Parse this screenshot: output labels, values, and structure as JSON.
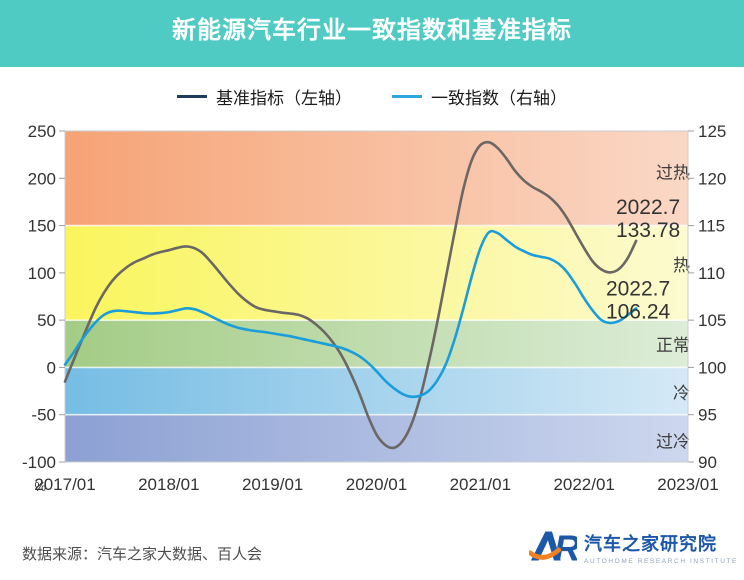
{
  "header": {
    "title": "新能源汽车行业一致指数和基准指标",
    "bar_color": "#4FCBC4",
    "title_color": "#FFFFFF"
  },
  "chart_data": {
    "type": "line",
    "title": "新能源汽车行业一致指数和基准指标",
    "x_axis": {
      "tick_labels": [
        "2017/01",
        "2018/01",
        "2019/01",
        "2020/01",
        "2021/01",
        "2022/01",
        "2023/01"
      ],
      "months_span": 72
    },
    "left_axis": {
      "unit": "%",
      "min": -100,
      "max": 250,
      "tick_labels": [
        "250",
        "200",
        "150",
        "100",
        "50",
        "0",
        "-50",
        "-100"
      ]
    },
    "right_axis": {
      "min": 90,
      "max": 125,
      "tick_labels": [
        "125",
        "120",
        "115",
        "110",
        "105",
        "100",
        "95",
        "90"
      ]
    },
    "bands": [
      {
        "key": "overheat",
        "label": "过热",
        "left_range": [
          150,
          250
        ],
        "right_range": [
          115,
          125
        ],
        "color_start": "#F6A375",
        "color_end": "#FAD8C6"
      },
      {
        "key": "hot",
        "label": "热",
        "left_range": [
          50,
          150
        ],
        "right_range": [
          105,
          115
        ],
        "color_start": "#FAF55C",
        "color_end": "#FCFAD0"
      },
      {
        "key": "normal",
        "label": "正常",
        "left_range": [
          0,
          50
        ],
        "right_range": [
          100,
          105
        ],
        "color_start": "#A3CC85",
        "color_end": "#DDEDD8"
      },
      {
        "key": "cold",
        "label": "冷",
        "left_range": [
          -50,
          0
        ],
        "right_range": [
          95,
          100
        ],
        "color_start": "#76BDE4",
        "color_end": "#D5E9F6"
      },
      {
        "key": "overcold",
        "label": "过冷",
        "left_range": [
          -100,
          -50
        ],
        "right_range": [
          90,
          95
        ],
        "color_start": "#8CA0D3",
        "color_end": "#CDD7EE"
      }
    ],
    "series": [
      {
        "key": "benchmark",
        "name": "基准指标（左轴）",
        "axis": "left",
        "line_color": "#6B6764",
        "legend_color": "#1F3A5F",
        "x_start": "2017/01",
        "x_step": "month",
        "values": [
          -15,
          8,
          30,
          52,
          71,
          86,
          97,
          105,
          111,
          115,
          119,
          122,
          124,
          126.5,
          128,
          126,
          120,
          110,
          99,
          88,
          78,
          70,
          64,
          61,
          59.5,
          58,
          57,
          55.5,
          52,
          45.5,
          37,
          26,
          12,
          -6,
          -27,
          -51,
          -71,
          -82,
          -85,
          -78,
          -61,
          -33,
          4,
          47,
          94,
          142,
          187,
          219,
          235,
          238,
          232,
          221,
          208,
          198,
          191,
          186,
          180,
          171,
          158,
          142,
          126,
          112,
          103.5,
          100.5,
          104,
          115,
          133.78
        ]
      },
      {
        "key": "coincident",
        "name": "一致指数（右轴）",
        "axis": "right",
        "line_color": "#1B9DD9",
        "legend_color": "#2EA7E0",
        "x_start": "2017/01",
        "x_step": "month",
        "values": [
          100.3,
          101.6,
          103,
          104.2,
          105.2,
          105.8,
          106,
          105.95,
          105.85,
          105.75,
          105.7,
          105.75,
          105.85,
          106.05,
          106.25,
          106.15,
          105.8,
          105.35,
          104.9,
          104.5,
          104.2,
          104,
          103.85,
          103.75,
          103.6,
          103.45,
          103.3,
          103.1,
          102.9,
          102.7,
          102.5,
          102.3,
          102.05,
          101.7,
          101.2,
          100.5,
          99.6,
          98.6,
          97.8,
          97.2,
          96.9,
          97,
          97.5,
          98.6,
          100.3,
          102.9,
          106.1,
          109.6,
          112.6,
          114.3,
          114.2,
          113.5,
          112.8,
          112.3,
          111.9,
          111.7,
          111.5,
          111,
          110.1,
          108.8,
          107.3,
          106,
          105,
          104.7,
          104.9,
          105.5,
          106.24
        ]
      }
    ],
    "annotations": [
      {
        "series": "benchmark",
        "x_label": "2022.7",
        "value_label": "133.78"
      },
      {
        "series": "coincident",
        "x_label": "2022.7",
        "value_label": "106.24"
      }
    ],
    "legend_position": "top",
    "grid": false
  },
  "footer": {
    "source_note": "数据来源：汽车之家大数据、百人会",
    "logo_cn": "汽车之家研究院",
    "logo_en": "AUTOHOME RESEARCH INSTITUTE",
    "logo_blue": "#1D57A8",
    "logo_orange": "#F08223"
  }
}
